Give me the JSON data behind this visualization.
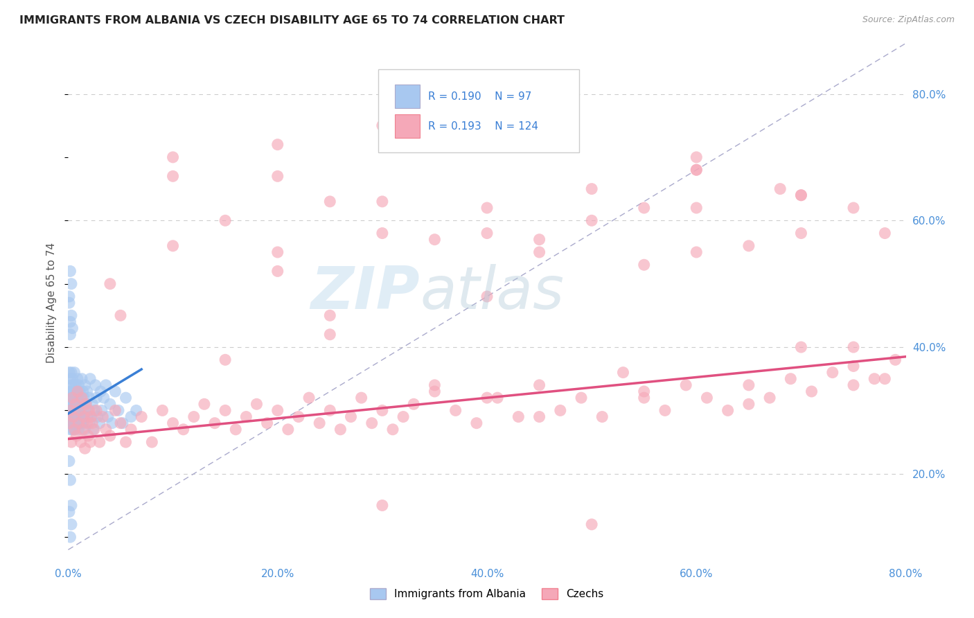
{
  "title": "IMMIGRANTS FROM ALBANIA VS CZECH DISABILITY AGE 65 TO 74 CORRELATION CHART",
  "source": "Source: ZipAtlas.com",
  "ylabel": "Disability Age 65 to 74",
  "xlabel_legend1": "Immigrants from Albania",
  "xlabel_legend2": "Czechs",
  "R1": 0.19,
  "N1": 97,
  "R2": 0.193,
  "N2": 124,
  "color_albania": "#a8c8f0",
  "color_albania_line": "#3a7fd5",
  "color_czech": "#f5a8b8",
  "color_czech_line": "#e05080",
  "xmin": 0.0,
  "xmax": 0.8,
  "ymin": 0.06,
  "ymax": 0.88,
  "xticks": [
    0.0,
    0.2,
    0.4,
    0.6,
    0.8
  ],
  "xtick_labels": [
    "0.0%",
    "20.0%",
    "40.0%",
    "60.0%",
    "80.0%"
  ],
  "ytick_right_values": [
    0.2,
    0.4,
    0.6,
    0.8
  ],
  "ytick_right_labels": [
    "20.0%",
    "40.0%",
    "60.0%",
    "80.0%"
  ],
  "watermark_zip": "ZIP",
  "watermark_atlas": "atlas",
  "background_color": "#ffffff",
  "grid_color": "#cccccc",
  "dash_line_color": "#aaaacc",
  "albania_x": [
    0.001,
    0.001,
    0.001,
    0.001,
    0.002,
    0.002,
    0.002,
    0.002,
    0.002,
    0.003,
    0.003,
    0.003,
    0.003,
    0.003,
    0.003,
    0.004,
    0.004,
    0.004,
    0.004,
    0.004,
    0.004,
    0.005,
    0.005,
    0.005,
    0.005,
    0.005,
    0.005,
    0.005,
    0.006,
    0.006,
    0.006,
    0.006,
    0.006,
    0.007,
    0.007,
    0.007,
    0.007,
    0.007,
    0.008,
    0.008,
    0.008,
    0.008,
    0.009,
    0.009,
    0.009,
    0.009,
    0.01,
    0.01,
    0.01,
    0.01,
    0.011,
    0.011,
    0.011,
    0.012,
    0.012,
    0.012,
    0.013,
    0.013,
    0.014,
    0.014,
    0.014,
    0.015,
    0.015,
    0.016,
    0.016,
    0.017,
    0.018,
    0.018,
    0.019,
    0.02,
    0.02,
    0.021,
    0.022,
    0.023,
    0.024,
    0.025,
    0.026,
    0.027,
    0.028,
    0.03,
    0.031,
    0.032,
    0.034,
    0.036,
    0.038,
    0.04,
    0.042,
    0.045,
    0.048,
    0.052,
    0.055,
    0.06,
    0.065,
    0.001,
    0.002,
    0.003,
    0.004
  ],
  "albania_y": [
    0.3,
    0.36,
    0.28,
    0.32,
    0.35,
    0.29,
    0.33,
    0.27,
    0.31,
    0.36,
    0.28,
    0.3,
    0.32,
    0.29,
    0.34,
    0.31,
    0.27,
    0.33,
    0.3,
    0.28,
    0.35,
    0.29,
    0.32,
    0.31,
    0.3,
    0.28,
    0.33,
    0.34,
    0.27,
    0.29,
    0.31,
    0.36,
    0.3,
    0.28,
    0.32,
    0.29,
    0.34,
    0.3,
    0.28,
    0.33,
    0.31,
    0.29,
    0.35,
    0.28,
    0.3,
    0.32,
    0.27,
    0.34,
    0.29,
    0.31,
    0.28,
    0.33,
    0.3,
    0.32,
    0.29,
    0.28,
    0.35,
    0.31,
    0.3,
    0.28,
    0.33,
    0.29,
    0.32,
    0.27,
    0.34,
    0.31,
    0.29,
    0.33,
    0.3,
    0.28,
    0.32,
    0.35,
    0.29,
    0.31,
    0.27,
    0.3,
    0.34,
    0.32,
    0.29,
    0.28,
    0.33,
    0.3,
    0.32,
    0.34,
    0.29,
    0.31,
    0.28,
    0.33,
    0.3,
    0.28,
    0.32,
    0.29,
    0.3,
    0.48,
    0.42,
    0.45,
    0.43
  ],
  "albania_y_outliers": [
    0.47,
    0.44,
    0.22,
    0.19,
    0.14,
    0.1,
    0.5,
    0.52,
    0.15,
    0.12
  ],
  "albania_x_outliers": [
    0.001,
    0.002,
    0.001,
    0.002,
    0.001,
    0.002,
    0.003,
    0.002,
    0.003,
    0.003
  ],
  "czech_x": [
    0.001,
    0.002,
    0.003,
    0.004,
    0.005,
    0.006,
    0.007,
    0.008,
    0.009,
    0.01,
    0.011,
    0.012,
    0.013,
    0.014,
    0.015,
    0.016,
    0.017,
    0.018,
    0.019,
    0.02,
    0.021,
    0.022,
    0.023,
    0.025,
    0.027,
    0.03,
    0.033,
    0.036,
    0.04,
    0.045,
    0.05,
    0.055,
    0.06,
    0.07,
    0.08,
    0.09,
    0.1,
    0.11,
    0.12,
    0.13,
    0.14,
    0.15,
    0.16,
    0.17,
    0.18,
    0.19,
    0.2,
    0.21,
    0.22,
    0.23,
    0.24,
    0.25,
    0.26,
    0.27,
    0.28,
    0.29,
    0.3,
    0.31,
    0.32,
    0.33,
    0.35,
    0.37,
    0.39,
    0.41,
    0.43,
    0.45,
    0.47,
    0.49,
    0.51,
    0.53,
    0.55,
    0.57,
    0.59,
    0.61,
    0.63,
    0.65,
    0.67,
    0.69,
    0.71,
    0.73,
    0.75,
    0.77,
    0.79,
    0.04,
    0.1,
    0.2,
    0.3,
    0.4,
    0.5,
    0.6,
    0.7,
    0.3,
    0.45,
    0.6,
    0.75,
    0.1,
    0.25,
    0.4,
    0.55,
    0.7,
    0.05,
    0.15,
    0.25,
    0.35,
    0.45,
    0.55,
    0.65,
    0.75,
    0.2,
    0.5,
    0.68,
    0.78,
    0.3,
    0.4,
    0.6,
    0.7,
    0.15,
    0.35,
    0.55,
    0.75,
    0.25,
    0.45,
    0.65,
    0.78
  ],
  "czech_y": [
    0.28,
    0.3,
    0.25,
    0.32,
    0.29,
    0.27,
    0.31,
    0.26,
    0.33,
    0.28,
    0.3,
    0.25,
    0.32,
    0.27,
    0.29,
    0.24,
    0.31,
    0.28,
    0.26,
    0.3,
    0.25,
    0.29,
    0.28,
    0.27,
    0.3,
    0.25,
    0.29,
    0.27,
    0.26,
    0.3,
    0.28,
    0.25,
    0.27,
    0.29,
    0.25,
    0.3,
    0.28,
    0.27,
    0.29,
    0.31,
    0.28,
    0.3,
    0.27,
    0.29,
    0.31,
    0.28,
    0.3,
    0.27,
    0.29,
    0.32,
    0.28,
    0.3,
    0.27,
    0.29,
    0.32,
    0.28,
    0.3,
    0.27,
    0.29,
    0.31,
    0.33,
    0.3,
    0.28,
    0.32,
    0.29,
    0.34,
    0.3,
    0.32,
    0.29,
    0.36,
    0.33,
    0.3,
    0.34,
    0.32,
    0.3,
    0.34,
    0.32,
    0.35,
    0.33,
    0.36,
    0.34,
    0.35,
    0.38,
    0.5,
    0.67,
    0.55,
    0.58,
    0.62,
    0.6,
    0.68,
    0.4,
    0.63,
    0.57,
    0.55,
    0.62,
    0.56,
    0.42,
    0.48,
    0.53,
    0.58,
    0.45,
    0.6,
    0.63,
    0.57,
    0.55,
    0.62,
    0.56,
    0.4,
    0.72,
    0.12,
    0.65,
    0.58,
    0.15,
    0.32,
    0.7,
    0.64,
    0.38,
    0.34,
    0.32,
    0.37,
    0.45,
    0.29,
    0.31,
    0.35
  ],
  "czech_x_outliers": [
    0.1,
    0.2,
    0.3,
    0.4,
    0.5,
    0.6,
    0.7,
    0.2,
    0.4,
    0.6
  ],
  "czech_y_outliers": [
    0.7,
    0.67,
    0.75,
    0.73,
    0.65,
    0.62,
    0.64,
    0.52,
    0.58,
    0.68
  ],
  "albania_trend_x0": 0.0,
  "albania_trend_y0": 0.295,
  "albania_trend_x1": 0.07,
  "albania_trend_y1": 0.365,
  "czech_trend_x0": 0.0,
  "czech_trend_y0": 0.255,
  "czech_trend_x1": 0.8,
  "czech_trend_y1": 0.385
}
